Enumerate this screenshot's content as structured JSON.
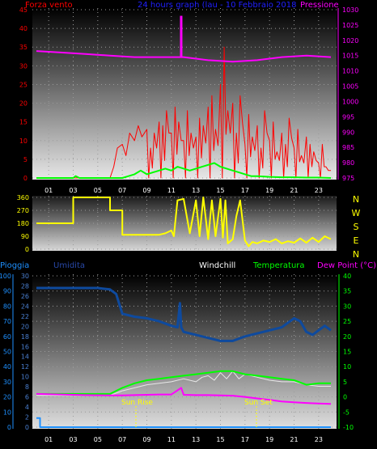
{
  "title": "24 hours graph (lau - 10 Febbraio 2018",
  "colors": {
    "wind": "#ff0000",
    "pressure": "#ff00ff",
    "gust": "#00ff00",
    "direction": "#ffff00",
    "rain": "#1e90ff",
    "humidity": "#0a3d8f",
    "windchill": "#e8e8e8",
    "temperature": "#00ff00",
    "dewpoint": "#ff00ff",
    "title": "#2020ff"
  },
  "x_ticks": [
    "01",
    "03",
    "05",
    "07",
    "09",
    "11",
    "13",
    "15",
    "17",
    "19",
    "21",
    "23"
  ],
  "chart_data": [
    {
      "type": "line",
      "name": "wind-pressure",
      "xlabel": "",
      "ylabel_left": "Forza vento",
      "ylabel_right": "Pressione",
      "ylim_left": [
        0,
        45
      ],
      "ylim_right": [
        975,
        1030
      ],
      "left_ticks": [
        "0",
        "5",
        "10",
        "15",
        "20",
        "25",
        "30",
        "35",
        "40",
        "45"
      ],
      "right_ticks": [
        "975",
        "980",
        "985",
        "990",
        "995",
        "1000",
        "1005",
        "1010",
        "1015",
        "1020",
        "1025",
        "1030"
      ],
      "grid": true,
      "series": [
        {
          "name": "Forza vento",
          "x": [
            0,
            1,
            2,
            3,
            4,
            5,
            6,
            6.3,
            6.6,
            7,
            7.3,
            7.6,
            8,
            8.3,
            8.6,
            9,
            9.3,
            9.6,
            10,
            10.3,
            10.6,
            11,
            11.3,
            11.6,
            12,
            12.3,
            12.6,
            13,
            13.3,
            13.6,
            14,
            14.3,
            14.6,
            15,
            15.3,
            15.6,
            16,
            16.3,
            16.6,
            17,
            17.3,
            17.6,
            18,
            18.3,
            18.6,
            19,
            19.3,
            19.6,
            20,
            20.3,
            20.6,
            21,
            21.3,
            21.6,
            22,
            22.3,
            22.6,
            23,
            23.3,
            23.6,
            24
          ],
          "y": [
            0,
            0,
            0,
            0,
            0,
            0,
            0,
            3,
            8,
            9,
            6,
            12,
            10,
            14,
            11,
            13,
            8,
            12,
            15,
            14,
            18,
            12,
            19,
            15,
            10,
            18,
            12,
            11,
            16,
            14,
            19,
            22,
            13,
            25,
            35,
            18,
            20,
            12,
            22,
            9,
            17,
            11,
            14,
            8,
            18,
            10,
            15,
            7,
            12,
            9,
            16,
            8,
            13,
            6,
            11,
            9,
            7,
            4,
            9,
            3,
            2
          ]
        },
        {
          "name": "Pressione",
          "x": [
            0,
            2,
            4,
            6,
            8,
            10,
            12,
            14,
            16,
            18,
            20,
            22,
            24
          ],
          "y": [
            1016.5,
            1016,
            1015.5,
            1015,
            1014.5,
            1014.5,
            1014.5,
            1013.5,
            1013,
            1013.5,
            1014.5,
            1015,
            1014.5
          ]
        },
        {
          "name": "Raffica",
          "x": [
            0,
            3,
            3.2,
            3.5,
            6,
            7,
            7.5,
            8,
            8.5,
            9,
            9.5,
            10,
            10.5,
            11,
            11.5,
            12,
            12.5,
            13,
            13.5,
            14,
            14.5,
            15,
            15.5,
            16,
            16.5,
            17,
            17.5,
            18,
            19,
            20,
            21,
            22,
            23,
            24
          ],
          "y": [
            0,
            0,
            0.5,
            0,
            0,
            0,
            0.5,
            1,
            2,
            1,
            1.5,
            2,
            2.5,
            2,
            3,
            2.5,
            2,
            2.5,
            3,
            3.5,
            4,
            3,
            2.5,
            2,
            1.5,
            1,
            0.5,
            0.5,
            0.3,
            0.2,
            0.2,
            0.1,
            0.1,
            0
          ]
        }
      ],
      "annotations": [
        {
          "type": "spike",
          "series": "Pressione",
          "x": 11.8,
          "y": 1028
        }
      ]
    },
    {
      "type": "line",
      "name": "wind-direction",
      "ylim": [
        0,
        360
      ],
      "left_ticks": [
        "0",
        "90",
        "180",
        "270",
        "360"
      ],
      "right_ticks": [
        "N",
        "W",
        "S",
        "E",
        "N"
      ],
      "grid": true,
      "series": [
        {
          "name": "Direzione",
          "x": [
            0,
            3,
            3,
            6,
            6,
            7,
            7,
            10,
            10.5,
            11,
            11.2,
            11.5,
            12,
            12.5,
            13,
            13.3,
            13.6,
            14,
            14.3,
            14.6,
            15,
            15.2,
            15.4,
            15.6,
            16,
            16.3,
            16.6,
            17,
            17.3,
            17.6,
            18,
            18.5,
            19,
            19.5,
            20,
            20.5,
            21,
            21.5,
            22,
            22.5,
            23,
            23.5,
            24
          ],
          "y": [
            180,
            180,
            360,
            360,
            270,
            270,
            100,
            100,
            110,
            130,
            90,
            340,
            350,
            110,
            340,
            90,
            360,
            70,
            340,
            90,
            350,
            80,
            340,
            40,
            70,
            230,
            340,
            60,
            20,
            50,
            40,
            60,
            50,
            70,
            40,
            55,
            45,
            75,
            45,
            80,
            50,
            90,
            70
          ]
        }
      ]
    },
    {
      "type": "line",
      "name": "humidity-temperature",
      "legend": [
        "Pioggia",
        "Umidita",
        "Windchill",
        "Temperatura",
        "Dew Point (°C)"
      ],
      "ylim_left": [
        0,
        100
      ],
      "ylim_right": [
        -10,
        40
      ],
      "pioggia_ticks": [
        "0",
        "10",
        "20",
        "30",
        "40",
        "50",
        "60",
        "70",
        "80",
        "90",
        "100"
      ],
      "umidita_ticks": [
        "0",
        "2",
        "4",
        "6",
        "8",
        "10",
        "12",
        "14",
        "16",
        "18",
        "20",
        "22",
        "24",
        "26",
        "28",
        "30"
      ],
      "right_ticks": [
        "-10",
        "-5",
        "0",
        "5",
        "10",
        "15",
        "20",
        "25",
        "30",
        "35",
        "40"
      ],
      "grid": true,
      "annotations": [
        "Sun Rise",
        "Sun Set"
      ],
      "series": [
        {
          "name": "Pioggia",
          "x": [
            0,
            0.3,
            0.3,
            24
          ],
          "y": [
            6,
            6,
            0,
            0
          ]
        },
        {
          "name": "Umidita",
          "x": [
            0,
            1,
            2,
            3,
            4,
            5,
            6,
            6.5,
            7,
            8,
            9,
            10,
            11,
            11.5,
            11.7,
            11.8,
            12,
            13,
            14,
            15,
            16,
            17,
            18,
            19,
            20,
            21,
            21.5,
            22,
            22.5,
            23,
            23.5,
            24
          ],
          "y": [
            92,
            92,
            92,
            92,
            92,
            92,
            91,
            88,
            75,
            73,
            72,
            70,
            67,
            66,
            82,
            66,
            63,
            61,
            59,
            57,
            57,
            60,
            62,
            64,
            66,
            72,
            70,
            63,
            61,
            64,
            67,
            64
          ]
        },
        {
          "name": "Windchill",
          "x": [
            0,
            2,
            4,
            6,
            7,
            8,
            9,
            10,
            11,
            12,
            13,
            13.5,
            14,
            14.5,
            15,
            15.5,
            16,
            16.5,
            17,
            18,
            19,
            20,
            21,
            22,
            23,
            24
          ],
          "y": [
            0.5,
            0.5,
            0.5,
            0.5,
            2,
            3,
            4,
            4.5,
            5,
            6,
            5,
            6.5,
            7,
            5.5,
            8,
            6,
            8.5,
            6,
            7.5,
            6.5,
            5.5,
            5,
            5,
            4,
            3.5,
            3.5
          ]
        },
        {
          "name": "Temperatura",
          "x": [
            0,
            2,
            4,
            6,
            7,
            8,
            9,
            10,
            11,
            12,
            13,
            14,
            15,
            16,
            17,
            18,
            19,
            20,
            21,
            22,
            23,
            24
          ],
          "y": [
            1,
            1,
            1,
            1,
            3,
            4.5,
            5.5,
            6,
            6.5,
            7,
            7.5,
            8,
            8.5,
            8.5,
            7.5,
            7,
            6.5,
            6,
            5.5,
            4,
            4.5,
            4.5
          ]
        },
        {
          "name": "Dew Point",
          "x": [
            0,
            2,
            4,
            6,
            7,
            8,
            9,
            10,
            11,
            11.8,
            12,
            13,
            14,
            15,
            16,
            17,
            18,
            19,
            20,
            21,
            22,
            23,
            24
          ],
          "y": [
            1,
            0.8,
            0.6,
            0.5,
            0.5,
            0.6,
            0.7,
            0.8,
            0.8,
            3,
            0.7,
            0.6,
            0.6,
            0.5,
            0.4,
            0,
            -0.5,
            -1,
            -1.5,
            -1.8,
            -2,
            -2.2,
            -2.3
          ]
        }
      ]
    }
  ]
}
